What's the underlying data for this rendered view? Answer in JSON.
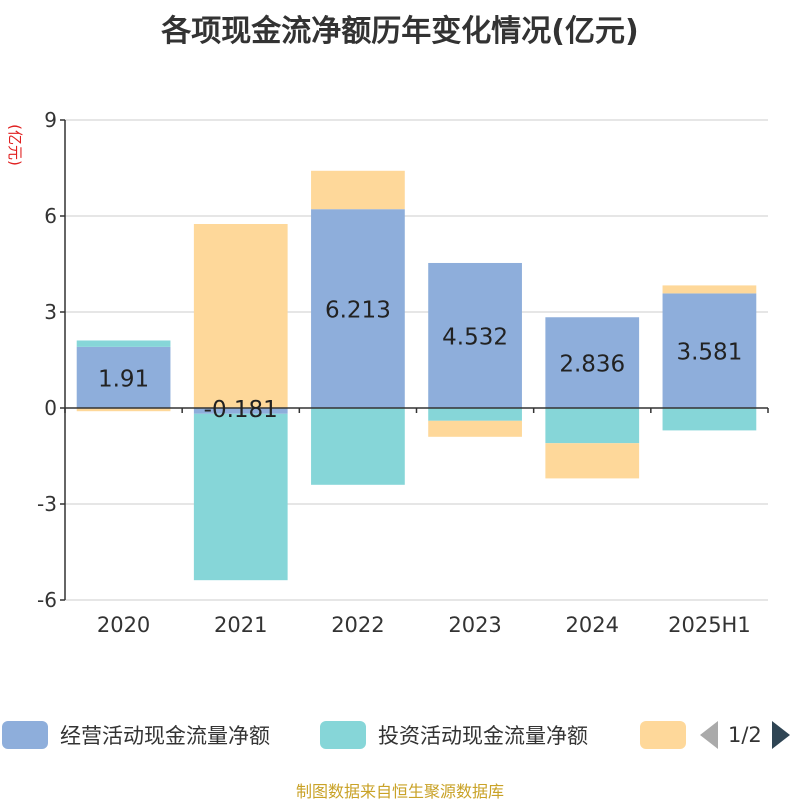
{
  "title": "各项现金流净额历年变化情况(亿元)",
  "source": "制图数据来自恒生聚源数据库",
  "legend_pager": "1/2",
  "colors": {
    "operating": "#8eaedb",
    "investing": "#86d6d8",
    "financing": "#fed89a"
  },
  "chart_data": {
    "type": "bar",
    "stacked": true,
    "categories": [
      "2020",
      "2021",
      "2022",
      "2023",
      "2024",
      "2025H1"
    ],
    "ylabel": "(亿元)",
    "ylim": [
      -6,
      9
    ],
    "yticks": [
      -6,
      -3,
      0,
      3,
      6,
      9
    ],
    "grid": true,
    "legend_position": "bottom",
    "series": [
      {
        "name": "经营活动现金流量净额",
        "values": [
          1.91,
          -0.181,
          6.213,
          4.532,
          2.836,
          3.581
        ],
        "labels": [
          "1.91",
          "-0.181",
          "6.213",
          "4.532",
          "2.836",
          "3.581"
        ]
      },
      {
        "name": "投资活动现金流量净额",
        "values": [
          0.2,
          -5.2,
          -2.4,
          -0.4,
          -1.1,
          -0.7
        ]
      },
      {
        "name": "",
        "values": [
          -0.1,
          5.75,
          1.2,
          -0.5,
          -1.1,
          0.25
        ]
      }
    ]
  }
}
